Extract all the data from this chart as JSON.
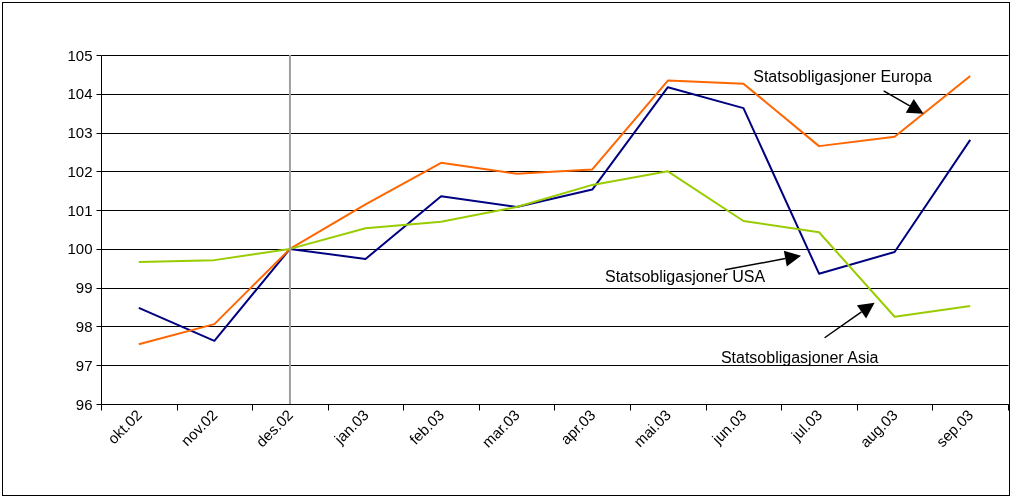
{
  "chart_data": {
    "type": "line",
    "categories": [
      "okt.02",
      "nov.02",
      "des.02",
      "jan.03",
      "feb.03",
      "mar.03",
      "apr.03",
      "mai.03",
      "jun.03",
      "jul.03",
      "aug.03",
      "sep.03"
    ],
    "series": [
      {
        "name": "Statsobligasjoner USA",
        "color": "#000080",
        "values": [
          98.48,
          97.63,
          100.0,
          99.74,
          101.36,
          101.08,
          101.53,
          104.17,
          103.63,
          99.36,
          99.92,
          102.81
        ]
      },
      {
        "name": "Statsobligasjoner Europa",
        "color": "#ff6600",
        "values": [
          97.54,
          98.06,
          100.0,
          101.15,
          102.22,
          101.94,
          102.05,
          104.34,
          104.26,
          102.65,
          102.89,
          104.46
        ]
      },
      {
        "name": "Statsobligasjoner Asia",
        "color": "#99cc00",
        "values": [
          99.66,
          99.71,
          100.0,
          100.53,
          100.7,
          101.08,
          101.65,
          102.0,
          100.72,
          100.43,
          98.25,
          98.53
        ]
      }
    ],
    "ylim": [
      96,
      105
    ],
    "yticks": [
      96,
      97,
      98,
      99,
      100,
      101,
      102,
      103,
      104,
      105
    ],
    "grid": "y",
    "ref_lines": [
      {
        "axis": "x",
        "value": "des.02",
        "color": "#a0a0a0"
      }
    ]
  }
}
